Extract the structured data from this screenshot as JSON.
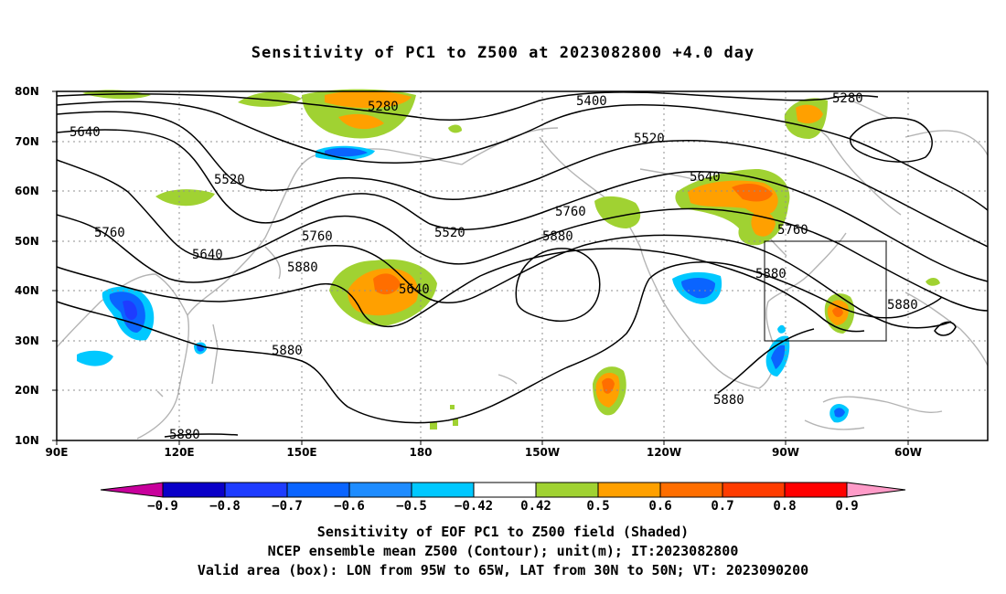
{
  "title": "Sensitivity of PC1 to Z500 at 2023082800 +4.0 day",
  "lat_ticks": [
    "80N",
    "70N",
    "60N",
    "50N",
    "40N",
    "30N",
    "20N",
    "10N"
  ],
  "lon_ticks": [
    "90E",
    "120E",
    "150E",
    "180",
    "150W",
    "120W",
    "90W",
    "60W"
  ],
  "contour_labels": [
    "5280",
    "5280",
    "5400",
    "5520",
    "5520",
    "5640",
    "5640",
    "5640",
    "5640",
    "5760",
    "5760",
    "5760",
    "5760",
    "5880",
    "5880",
    "5880",
    "5880",
    "5880",
    "5880",
    "5520"
  ],
  "valid_box": {
    "lon_from": "95W",
    "lon_to": "65W",
    "lat_from": "30N",
    "lat_to": "50N"
  },
  "colorbar": {
    "tick_labels": [
      "-0.9",
      "-0.8",
      "-0.7",
      "-0.6",
      "-0.5",
      "-0.42",
      "0.42",
      "0.5",
      "0.6",
      "0.7",
      "0.8",
      "0.9"
    ],
    "colors": [
      "#c8009c",
      "#0a00c8",
      "#1e3cff",
      "#0a64ff",
      "#1e8cff",
      "#00c8ff",
      "#ffffff",
      "#a0d232",
      "#ffa000",
      "#ff6e00",
      "#ff3c00",
      "#ff0000",
      "#ff9bc8"
    ]
  },
  "caption": {
    "line1": "Sensitivity of EOF PC1 to Z500 field (Shaded)",
    "line2": "NCEP ensemble mean Z500 (Contour); unit(m); IT:2023082800",
    "line3": "Valid area (box): LON from 95W to 65W, LAT from 30N to 50N; VT: 2023090200"
  }
}
